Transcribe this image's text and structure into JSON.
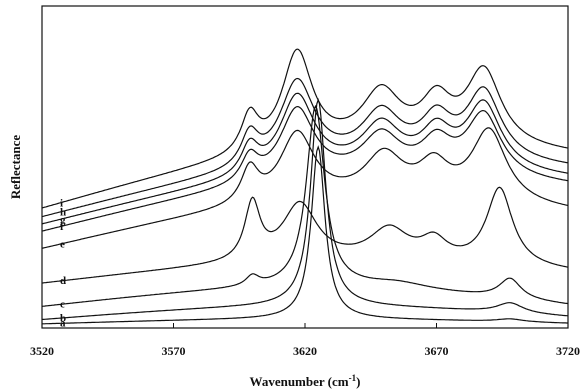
{
  "chart_data": {
    "type": "line",
    "title": "",
    "xlabel": "Wavenumber (cm",
    "xlabel_sup": "-1",
    "xlabel_close": ")",
    "ylabel": "Reflectance",
    "xlim": [
      3520,
      3720
    ],
    "x_ticks": [
      "3520",
      "3570",
      "3620",
      "3670",
      "3720"
    ],
    "grid": false,
    "legend": "curve labels at left",
    "series": [
      {
        "name": "a",
        "peaks": [
          [
            3625,
            6.0,
            3.2
          ],
          [
            3698,
            0.1,
            6
          ]
        ],
        "baseline": [
          0.15,
          0.02
        ],
        "offset": 0.0
      },
      {
        "name": "b",
        "peaks": [
          [
            3625,
            7.2,
            3.5
          ],
          [
            3698,
            0.35,
            6
          ]
        ],
        "baseline": [
          0.4,
          0.1
        ],
        "offset": 0.15
      },
      {
        "name": "c",
        "peaks": [
          [
            3600,
            0.35,
            3
          ],
          [
            3624,
            6.3,
            4.2
          ],
          [
            3655,
            0.25,
            15
          ],
          [
            3698,
            0.7,
            5
          ]
        ],
        "baseline": [
          0.6,
          0.05
        ],
        "offset": 0.6
      },
      {
        "name": "d",
        "peaks": [
          [
            3600,
            2.0,
            3.5
          ],
          [
            3618,
            2.0,
            8
          ],
          [
            3652,
            1.1,
            9
          ],
          [
            3669,
            0.7,
            6
          ],
          [
            3694,
            2.7,
            6
          ]
        ],
        "baseline": [
          0.5,
          0.4
        ],
        "offset": 1.4
      },
      {
        "name": "e",
        "peaks": [
          [
            3599,
            1.2,
            4
          ],
          [
            3617,
            2.4,
            8
          ],
          [
            3650,
            1.5,
            9
          ],
          [
            3669,
            1.1,
            7
          ],
          [
            3690,
            2.5,
            8
          ]
        ],
        "baseline": [
          0.9,
          1.3
        ],
        "offset": 2.6
      },
      {
        "name": "f",
        "peaks": [
          [
            3599,
            0.9,
            4
          ],
          [
            3617,
            2.5,
            8
          ],
          [
            3649,
            1.4,
            9
          ],
          [
            3670,
            1.1,
            7
          ],
          [
            3688,
            2.2,
            8
          ]
        ],
        "baseline": [
          0.9,
          1.6
        ],
        "offset": 3.2
      },
      {
        "name": "g",
        "peaks": [
          [
            3599,
            1.0,
            4
          ],
          [
            3617,
            2.7,
            8
          ],
          [
            3649,
            1.5,
            9
          ],
          [
            3670,
            1.2,
            7
          ],
          [
            3688,
            2.3,
            8
          ]
        ],
        "baseline": [
          0.9,
          1.6
        ],
        "offset": 3.45
      },
      {
        "name": "h",
        "peaks": [
          [
            3599,
            1.1,
            4
          ],
          [
            3617,
            2.9,
            8
          ],
          [
            3649,
            1.6,
            9
          ],
          [
            3670,
            1.3,
            7
          ],
          [
            3688,
            2.4,
            8
          ]
        ],
        "baseline": [
          0.9,
          1.7
        ],
        "offset": 3.7
      },
      {
        "name": "i",
        "peaks": [
          [
            3599,
            1.3,
            4
          ],
          [
            3617,
            3.4,
            7
          ],
          [
            3649,
            1.8,
            9
          ],
          [
            3670,
            1.4,
            7
          ],
          [
            3688,
            2.6,
            8
          ]
        ],
        "baseline": [
          1.0,
          1.9
        ],
        "offset": 4.0
      }
    ]
  }
}
